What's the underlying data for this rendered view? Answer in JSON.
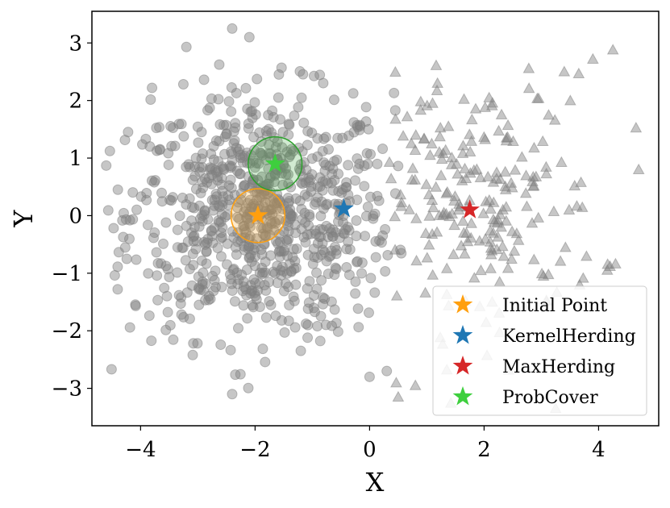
{
  "chart_data": {
    "type": "scatter",
    "xlabel": "X",
    "ylabel": "Y",
    "xlim": [
      -4.85,
      5.05
    ],
    "ylim": [
      -3.65,
      3.55
    ],
    "xticks": [
      -4,
      -2,
      0,
      2,
      4
    ],
    "yticks": [
      -3,
      -2,
      -1,
      0,
      1,
      2,
      3
    ],
    "xtick_labels": [
      "−4",
      "−2",
      "0",
      "2",
      "4"
    ],
    "ytick_labels": [
      "−3",
      "−2",
      "−1",
      "0",
      "1",
      "2",
      "3"
    ],
    "grid": false,
    "legend_position": "lower-right",
    "colors": {
      "points": "#808080",
      "initial_point": "#ff9f0e",
      "kernel_herding": "#1f77b4",
      "max_herding": "#d62728",
      "prob_cover": "#3ecf3e",
      "prob_cover_circle": "#2ca02c"
    },
    "clusters": [
      {
        "shape": "circle",
        "count": 820,
        "center": [
          -1.9,
          0.0
        ],
        "spread": [
          1.15,
          1.05
        ],
        "x_range": [
          -4.7,
          0.6
        ]
      },
      {
        "shape": "triangle",
        "count": 220,
        "center": [
          1.9,
          0.2
        ],
        "spread": [
          1.05,
          1.1
        ],
        "x_range": [
          0.3,
          4.9
        ]
      }
    ],
    "outlier_points": [
      {
        "shape": "circle",
        "x": -2.4,
        "y": 3.25
      },
      {
        "shape": "circle",
        "x": -2.1,
        "y": 3.1
      },
      {
        "shape": "circle",
        "x": -3.2,
        "y": 2.93
      },
      {
        "shape": "circle",
        "x": -3.8,
        "y": 2.22
      },
      {
        "shape": "circle",
        "x": -4.6,
        "y": 0.87
      },
      {
        "shape": "circle",
        "x": -4.4,
        "y": -1.28
      },
      {
        "shape": "circle",
        "x": -2.4,
        "y": -3.1
      },
      {
        "shape": "circle",
        "x": 0.0,
        "y": -2.8
      },
      {
        "shape": "circle",
        "x": 0.3,
        "y": -2.7
      },
      {
        "shape": "triangle",
        "x": 4.25,
        "y": 2.88
      },
      {
        "shape": "triangle",
        "x": 3.9,
        "y": 2.72
      },
      {
        "shape": "triangle",
        "x": 3.4,
        "y": 2.5
      },
      {
        "shape": "triangle",
        "x": 4.7,
        "y": 0.8
      },
      {
        "shape": "triangle",
        "x": 3.25,
        "y": -3.35
      },
      {
        "shape": "triangle",
        "x": 0.5,
        "y": -3.15
      },
      {
        "shape": "triangle",
        "x": 0.8,
        "y": -2.95
      },
      {
        "shape": "triangle",
        "x": 4.2,
        "y": -0.88
      }
    ],
    "selected_points": [
      {
        "name": "Initial Point",
        "x": -1.95,
        "y": -0.0,
        "color": "#ff9f0e",
        "radius": 0.47,
        "circle_color": "#ff9f0e"
      },
      {
        "name": "KernelHerding",
        "x": -0.45,
        "y": 0.12,
        "color": "#1f77b4"
      },
      {
        "name": "MaxHerding",
        "x": 1.75,
        "y": 0.1,
        "color": "#d62728"
      },
      {
        "name": "ProbCover",
        "x": -1.65,
        "y": 0.9,
        "color": "#3ecf3e",
        "radius": 0.47,
        "circle_color": "#2ca02c"
      }
    ],
    "legend": [
      "Initial Point",
      "KernelHerding",
      "MaxHerding",
      "ProbCover"
    ]
  }
}
